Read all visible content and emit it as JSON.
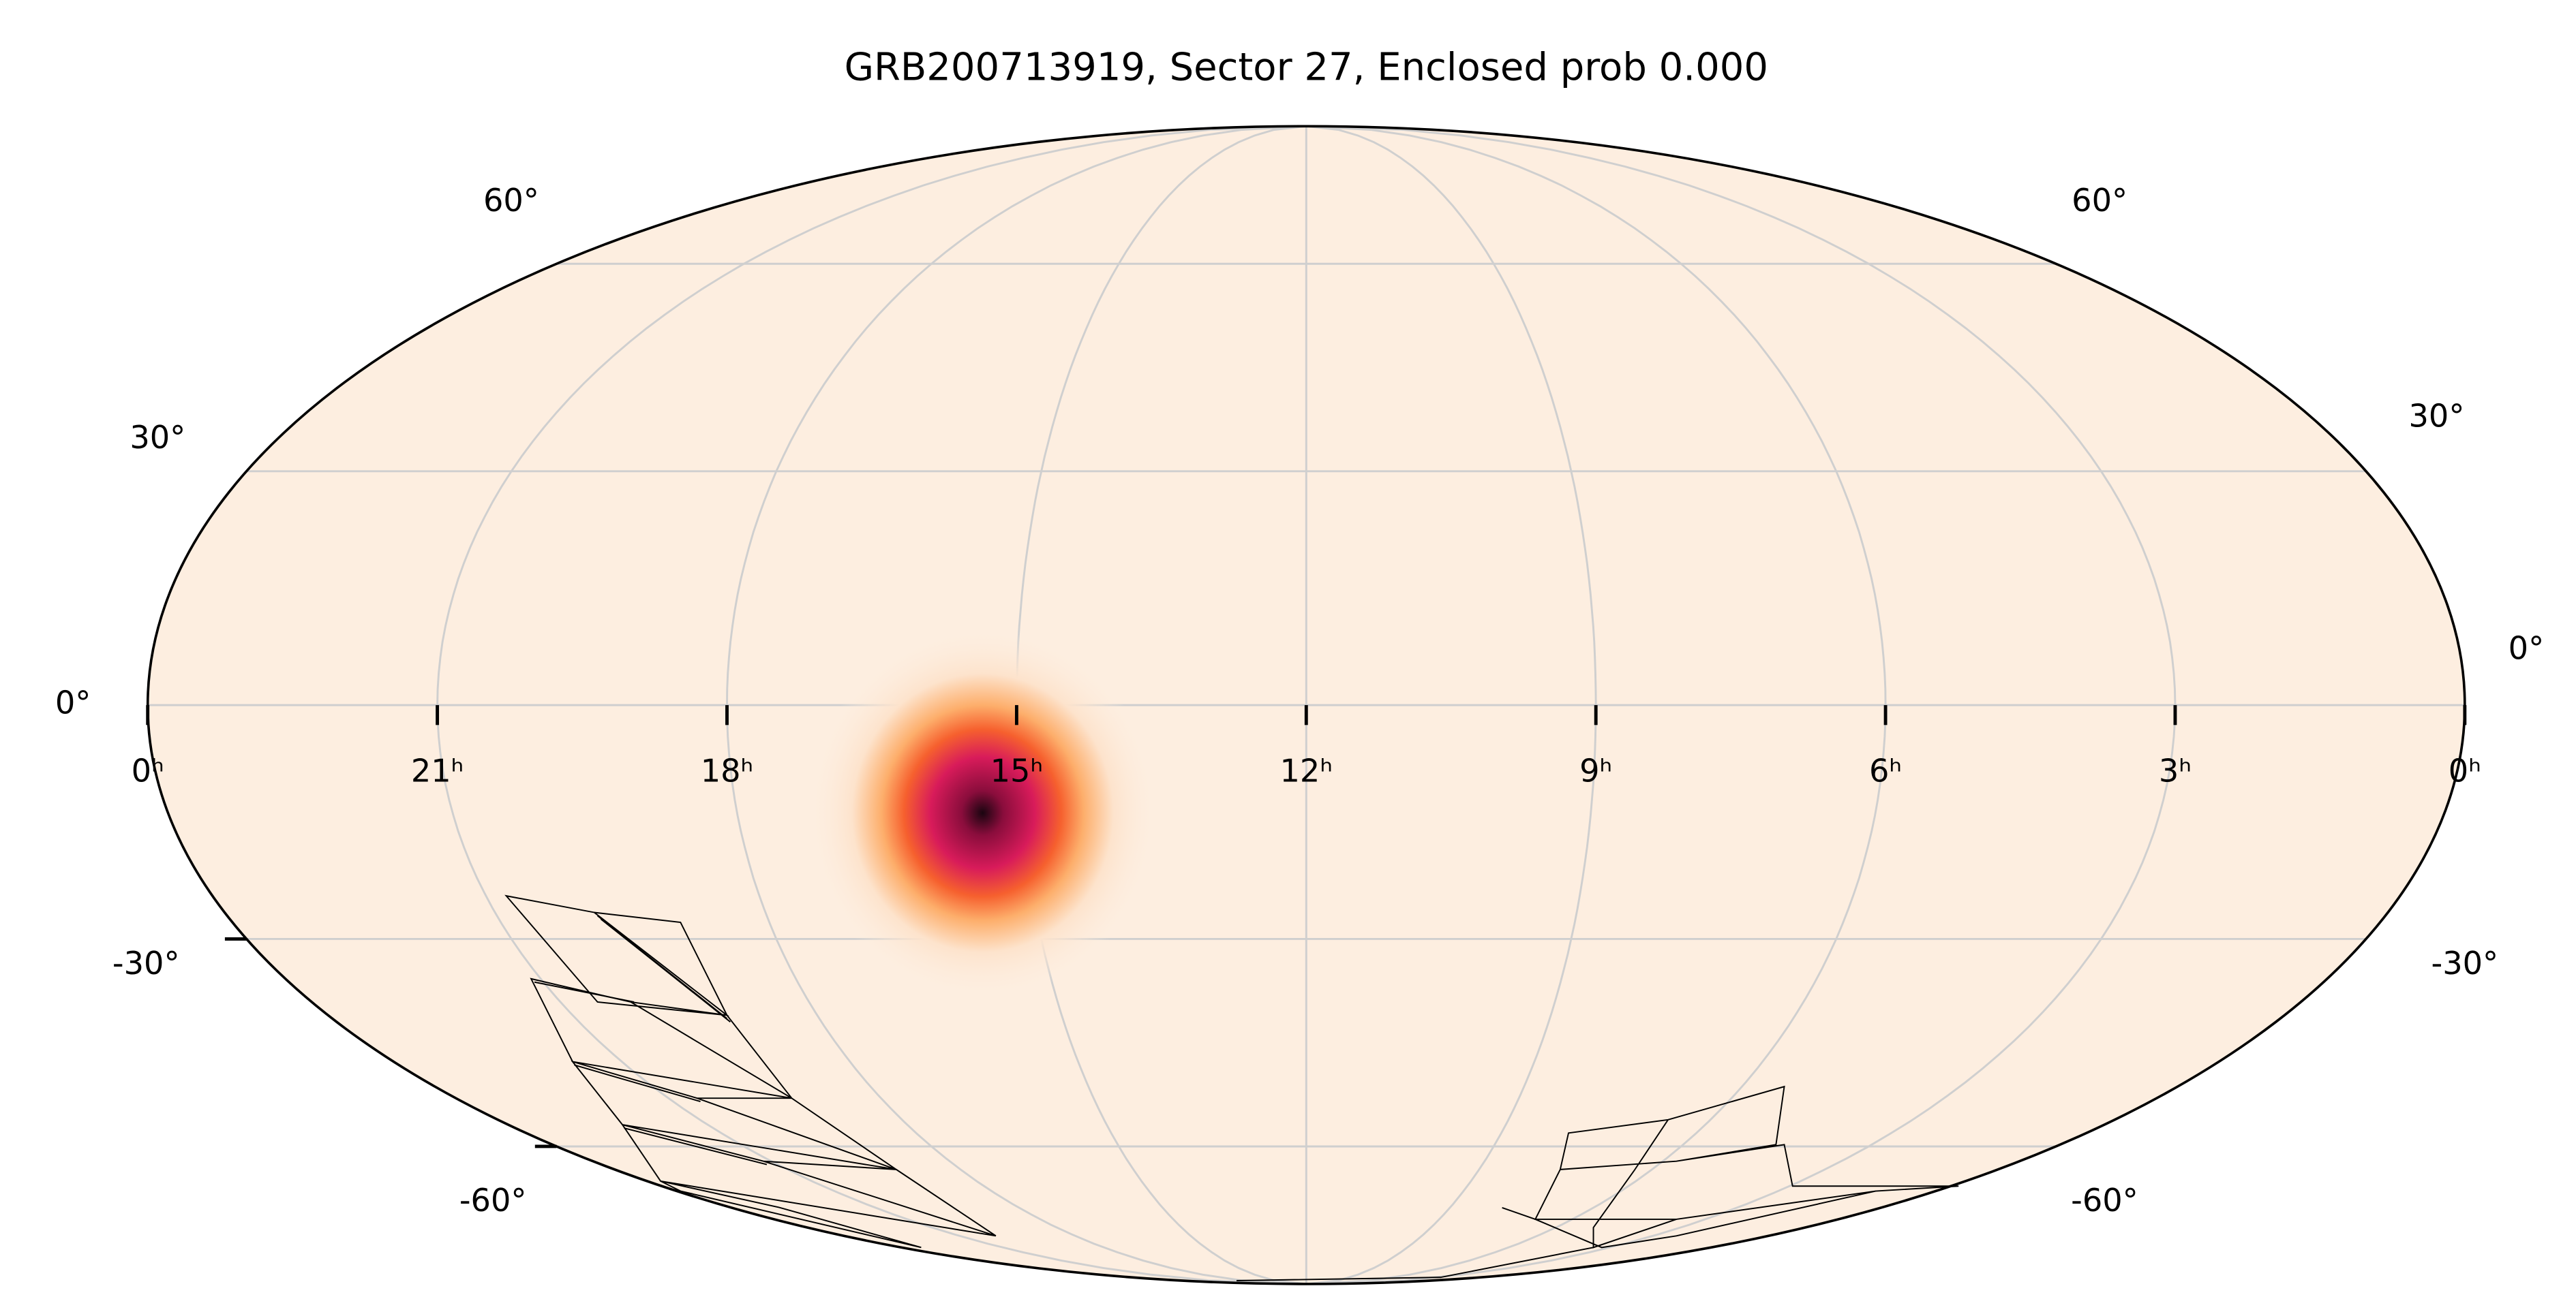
{
  "chart_data": {
    "type": "mollweide",
    "title": "GRB200713919, Sector 27, Enclosed prob 0.000",
    "grid": true,
    "ra_ticks": [
      {
        "value": 0,
        "label": "0ʰ"
      },
      {
        "value": 21,
        "label": "21ʰ"
      },
      {
        "value": 18,
        "label": "18ʰ"
      },
      {
        "value": 15,
        "label": "15ʰ"
      },
      {
        "value": 12,
        "label": "12ʰ"
      },
      {
        "value": 9,
        "label": "9ʰ"
      },
      {
        "value": 6,
        "label": "6ʰ"
      },
      {
        "value": 3,
        "label": "3ʰ"
      },
      {
        "value": 0,
        "label": "0ʰ"
      }
    ],
    "dec_ticks": [
      {
        "value": 60,
        "label": "60°"
      },
      {
        "value": 30,
        "label": "30°"
      },
      {
        "value": 0,
        "label": "0°"
      },
      {
        "value": -30,
        "label": "-30°"
      },
      {
        "value": -60,
        "label": "-60°"
      }
    ]
  }
}
